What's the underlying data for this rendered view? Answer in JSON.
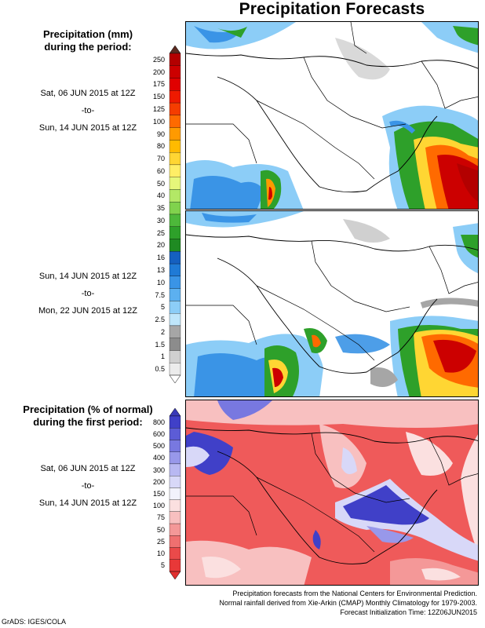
{
  "title": "Precipitation Forecasts",
  "mm_section": {
    "heading_line1": "Precipitation (mm)",
    "heading_line2": "during the period:",
    "period1": {
      "start": "Sat, 06 JUN 2015 at 12Z",
      "sep": "-to-",
      "end": "Sun, 14 JUN 2015 at 12Z"
    },
    "period2": {
      "start": "Sun, 14 JUN 2015 at 12Z",
      "sep": "-to-",
      "end": "Mon, 22 JUN 2015 at 12Z"
    },
    "colorbar": {
      "labels": [
        "250",
        "200",
        "175",
        "150",
        "125",
        "100",
        "90",
        "80",
        "70",
        "60",
        "50",
        "40",
        "35",
        "30",
        "25",
        "20",
        "16",
        "13",
        "10",
        "7.5",
        "5",
        "2.5",
        "2",
        "1.5",
        "1",
        "0.5"
      ],
      "colors": [
        "#b30000",
        "#cc0000",
        "#e00000",
        "#ee1a00",
        "#f53d00",
        "#ff6a00",
        "#ff9a00",
        "#ffbb00",
        "#ffd633",
        "#ffee66",
        "#e6f77a",
        "#b3e866",
        "#80d24d",
        "#4db83a",
        "#2ea02a",
        "#1f8a22",
        "#1560c0",
        "#1f7ad6",
        "#3a94e6",
        "#5cb0f0",
        "#8ccdf7",
        "#bfe6fb",
        "#a6a6a6",
        "#8c8c8c",
        "#d0d0d0",
        "#ececec"
      ],
      "top_arrow_color": "#5a2a20"
    }
  },
  "pct_section": {
    "heading_line1": "Precipitation (% of normal)",
    "heading_line2": "during the first period:",
    "period": {
      "start": "Sat, 06 JUN 2015 at 12Z",
      "sep": "-to-",
      "end": "Sun, 14 JUN 2015 at 12Z"
    },
    "colorbar": {
      "labels": [
        "800",
        "600",
        "500",
        "400",
        "300",
        "200",
        "150",
        "100",
        "75",
        "50",
        "25",
        "10",
        "5"
      ],
      "colors": [
        "#4040c8",
        "#5c5cd6",
        "#7878e0",
        "#9898ea",
        "#b8b8f2",
        "#d8d8f8",
        "#f2f2fc",
        "#fbe0e0",
        "#f8c0c0",
        "#f49898",
        "#ef7070",
        "#ea4a4a",
        "#e83838"
      ],
      "top_arrow_color": "#3a3ab8",
      "bottom_arrow_color": "#e03030"
    }
  },
  "footer": {
    "line1": "Precipitation forecasts from the National Centers for Environmental Prediction.",
    "line2": "Normal rainfall derived from Xie-Arkin (CMAP) Monthly Climatology for 1979-2003.",
    "line3": "Forecast Initialization Time: 12Z06JUN2015"
  },
  "credit": "GrADS: IGES/COLA"
}
